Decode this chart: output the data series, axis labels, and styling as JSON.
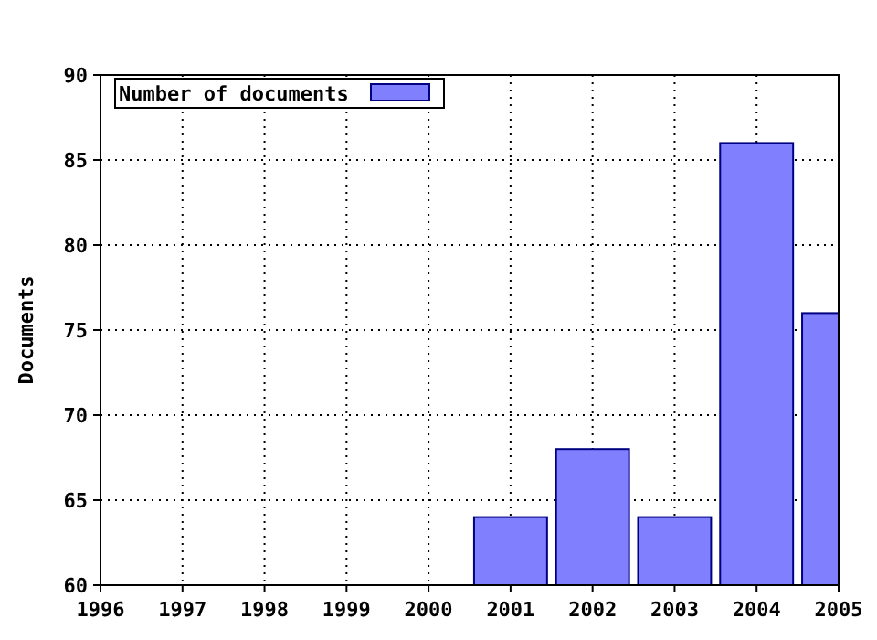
{
  "chart_data": {
    "type": "bar",
    "ylabel": "Documents",
    "x": [
      2001,
      2002,
      2003,
      2004,
      2005
    ],
    "series": [
      {
        "name": "Number of documents",
        "color": "#8080ff",
        "values": [
          64,
          68,
          64,
          86,
          76
        ]
      }
    ],
    "xlim": [
      1996,
      2005
    ],
    "xticks": [
      1996,
      1997,
      1998,
      1999,
      2000,
      2001,
      2002,
      2003,
      2004,
      2005
    ],
    "ylim": [
      60,
      90
    ],
    "yticks": [
      60,
      65,
      70,
      75,
      80,
      85,
      90
    ],
    "grid": true,
    "legend": "top left"
  }
}
